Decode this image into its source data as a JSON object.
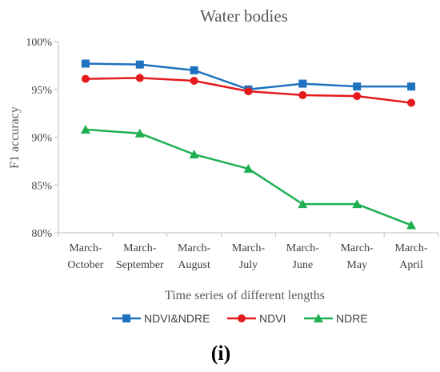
{
  "chart_data": {
    "type": "line",
    "title": "Water bodies",
    "xlabel": "Time series of different lengths",
    "ylabel": "F1 accuracy",
    "categories": [
      [
        "March-",
        "October"
      ],
      [
        "March-",
        "September"
      ],
      [
        "March-",
        "August"
      ],
      [
        "March-",
        "July"
      ],
      [
        "March-",
        "June"
      ],
      [
        "March-",
        "May"
      ],
      [
        "March-",
        "April"
      ]
    ],
    "ylim": [
      80,
      100
    ],
    "yticks": [
      80,
      85,
      90,
      95,
      100
    ],
    "ytick_labels": [
      "80%",
      "85%",
      "90%",
      "95%",
      "100%"
    ],
    "grid": false,
    "legend_position": "bottom",
    "series": [
      {
        "name": "NDVI&NDRE",
        "color": "#1F72C0",
        "marker": "square",
        "values": [
          97.7,
          97.6,
          97.0,
          95.0,
          95.6,
          95.3,
          95.3
        ]
      },
      {
        "name": "NDVI",
        "color": "#E41A1C",
        "marker": "circle",
        "values": [
          96.1,
          96.2,
          95.9,
          94.8,
          94.4,
          94.3,
          93.6
        ]
      },
      {
        "name": "NDRE",
        "color": "#1EB050",
        "marker": "triangle",
        "values": [
          90.8,
          90.4,
          88.2,
          86.7,
          83.0,
          83.0,
          80.8
        ]
      }
    ]
  },
  "caption": {
    "open": "(",
    "letter": "i",
    "close": ")"
  }
}
